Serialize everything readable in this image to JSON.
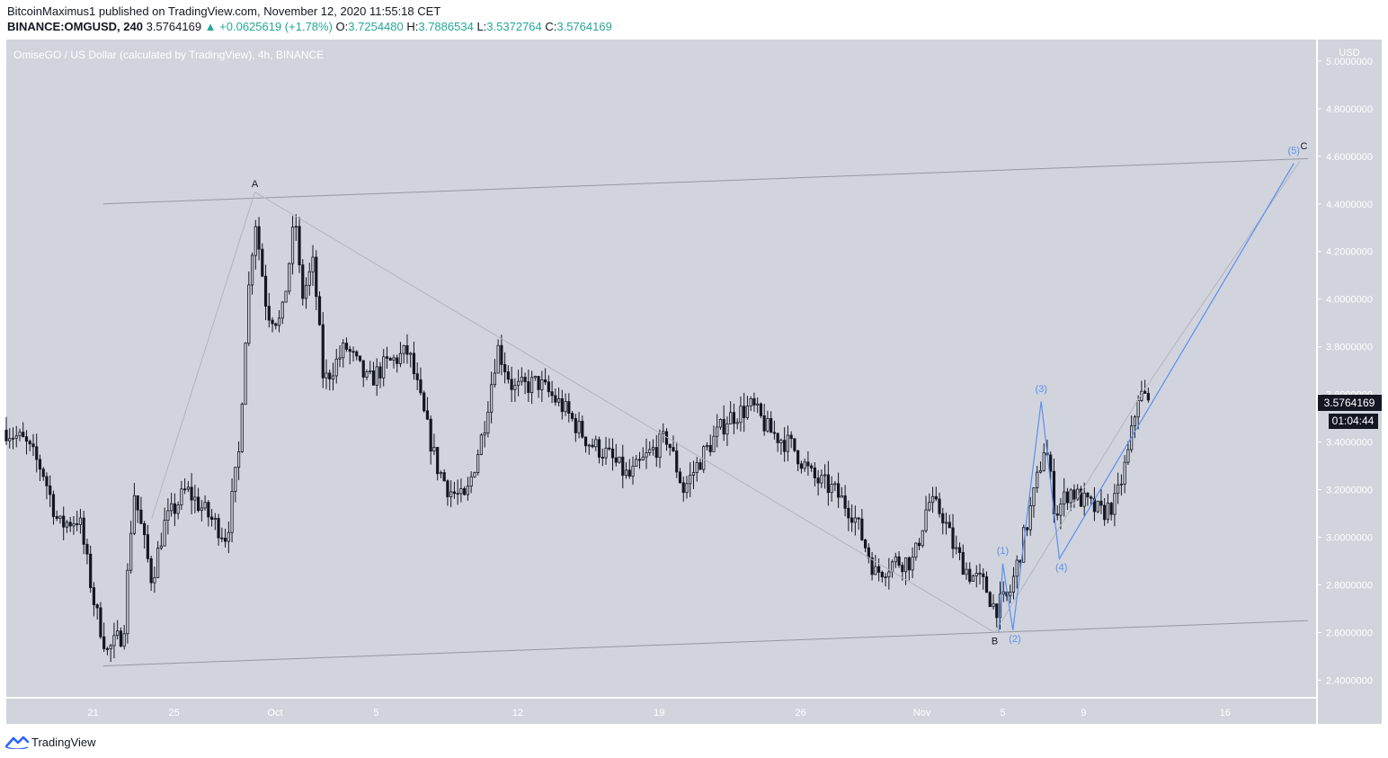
{
  "header": {
    "publisher": "BitcoinMaximus1",
    "published_text": "published on TradingView.com, November 12, 2020 11:55:18 CET",
    "symbol": "BINANCE:OMGUSD, 240",
    "last": "3.5764169",
    "change": "▲ +0.0625619 (+1.78%)",
    "o_label": "O:",
    "o_value": "3.7254480",
    "h_label": "H:",
    "h_value": "3.7886534",
    "l_label": "L:",
    "l_value": "3.5372764",
    "c_label": "C:",
    "c_value": "3.5764169"
  },
  "footer": {
    "brand": "TradingView",
    "logo_icon": "tradingview-logo-icon"
  },
  "colors": {
    "plot_bg": "#d1d4dc",
    "axis_bg": "#d1d4dc",
    "candle": "#131722",
    "channel_line": "#9598a1",
    "wave_line": "#b2b5be",
    "blue_wave": "#5b8ff0",
    "price_label_bg": "#131722",
    "up": "#26a69a"
  },
  "chart_data": {
    "type": "candlestick",
    "title": "OmiseGO / US Dollar (calculated by TradingView), 4h, BINANCE",
    "currency_label": "USD",
    "ylim": [
      2.33,
      5.09
    ],
    "y_ticks": [
      "5.0000000",
      "4.8000000",
      "4.6000000",
      "4.4000000",
      "4.2000000",
      "4.0000000",
      "3.8000000",
      "3.6000000",
      "3.4000000",
      "3.2000000",
      "3.0000000",
      "2.8000000",
      "2.6000000",
      "2.4000000"
    ],
    "x_ticks": [
      {
        "label": "21",
        "day": 21
      },
      {
        "label": "25",
        "day": 25
      },
      {
        "label": "Oct",
        "day": 30
      },
      {
        "label": "5",
        "day": 35
      },
      {
        "label": "12",
        "day": 42
      },
      {
        "label": "19",
        "day": 49
      },
      {
        "label": "26",
        "day": 56
      },
      {
        "label": "Nov",
        "day": 62
      },
      {
        "label": "5",
        "day": 66
      },
      {
        "label": "9",
        "day": 70
      },
      {
        "label": "16",
        "day": 77
      }
    ],
    "xlim_day": [
      16.7,
      81.5
    ],
    "last_price": "3.5764169",
    "countdown": "01:04:44",
    "keypoints": [
      {
        "day": 16.7,
        "price": 3.45
      },
      {
        "day": 17.6,
        "price": 3.4
      },
      {
        "day": 18.5,
        "price": 3.28
      },
      {
        "day": 19.3,
        "price": 3.05
      },
      {
        "day": 20.3,
        "price": 3.08
      },
      {
        "day": 21.1,
        "price": 2.7
      },
      {
        "day": 21.7,
        "price": 2.52
      },
      {
        "day": 22.5,
        "price": 2.6
      },
      {
        "day": 23.0,
        "price": 3.2
      },
      {
        "day": 23.9,
        "price": 2.82
      },
      {
        "day": 24.5,
        "price": 3.05
      },
      {
        "day": 25.6,
        "price": 3.2
      },
      {
        "day": 26.6,
        "price": 3.1
      },
      {
        "day": 27.6,
        "price": 3.0
      },
      {
        "day": 28.2,
        "price": 3.35
      },
      {
        "day": 28.6,
        "price": 3.95
      },
      {
        "day": 29.0,
        "price": 4.35
      },
      {
        "day": 29.6,
        "price": 3.95
      },
      {
        "day": 30.3,
        "price": 3.9
      },
      {
        "day": 31.0,
        "price": 4.35
      },
      {
        "day": 31.3,
        "price": 4.0
      },
      {
        "day": 31.9,
        "price": 4.15
      },
      {
        "day": 32.4,
        "price": 3.65
      },
      {
        "day": 33.5,
        "price": 3.8
      },
      {
        "day": 34.6,
        "price": 3.65
      },
      {
        "day": 35.4,
        "price": 3.72
      },
      {
        "day": 36.6,
        "price": 3.78
      },
      {
        "day": 37.4,
        "price": 3.5
      },
      {
        "day": 38.0,
        "price": 3.3
      },
      {
        "day": 38.6,
        "price": 3.2
      },
      {
        "day": 39.4,
        "price": 3.15
      },
      {
        "day": 40.3,
        "price": 3.45
      },
      {
        "day": 41.0,
        "price": 3.8
      },
      {
        "day": 41.8,
        "price": 3.62
      },
      {
        "day": 43.0,
        "price": 3.65
      },
      {
        "day": 44.2,
        "price": 3.55
      },
      {
        "day": 45.5,
        "price": 3.4
      },
      {
        "day": 46.4,
        "price": 3.35
      },
      {
        "day": 47.5,
        "price": 3.25
      },
      {
        "day": 48.5,
        "price": 3.35
      },
      {
        "day": 49.4,
        "price": 3.42
      },
      {
        "day": 50.2,
        "price": 3.2
      },
      {
        "day": 51.2,
        "price": 3.35
      },
      {
        "day": 52.4,
        "price": 3.5
      },
      {
        "day": 53.6,
        "price": 3.55
      },
      {
        "day": 54.4,
        "price": 3.45
      },
      {
        "day": 55.6,
        "price": 3.38
      },
      {
        "day": 56.6,
        "price": 3.25
      },
      {
        "day": 57.6,
        "price": 3.2
      },
      {
        "day": 58.6,
        "price": 3.1
      },
      {
        "day": 59.7,
        "price": 2.85
      },
      {
        "day": 60.7,
        "price": 2.9
      },
      {
        "day": 61.6,
        "price": 2.9
      },
      {
        "day": 62.3,
        "price": 3.15
      },
      {
        "day": 63.0,
        "price": 3.1
      },
      {
        "day": 63.6,
        "price": 2.95
      },
      {
        "day": 64.3,
        "price": 2.85
      },
      {
        "day": 65.1,
        "price": 2.8
      },
      {
        "day": 65.6,
        "price": 2.7
      },
      {
        "day": 66.3,
        "price": 2.75
      },
      {
        "day": 66.9,
        "price": 2.95
      },
      {
        "day": 67.6,
        "price": 3.2
      },
      {
        "day": 68.1,
        "price": 3.4
      },
      {
        "day": 68.6,
        "price": 3.1
      },
      {
        "day": 69.3,
        "price": 3.2
      },
      {
        "day": 70.0,
        "price": 3.15
      },
      {
        "day": 70.9,
        "price": 3.1
      },
      {
        "day": 71.6,
        "price": 3.15
      },
      {
        "day": 72.2,
        "price": 3.35
      },
      {
        "day": 72.7,
        "price": 3.6
      },
      {
        "day": 73.3,
        "price": 3.58
      }
    ],
    "channel_lines": [
      {
        "name": "upper-channel-line",
        "from": {
          "day": 21.5,
          "price": 4.4
        },
        "to": {
          "day": 81.1,
          "price": 4.59
        }
      },
      {
        "name": "lower-channel-line",
        "from": {
          "day": 21.5,
          "price": 2.46
        },
        "to": {
          "day": 81.1,
          "price": 2.65
        }
      }
    ],
    "wave_lines": [
      {
        "name": "wave-a-line",
        "points": [
          {
            "day": 23.9,
            "price": 3.08
          },
          {
            "day": 29.0,
            "price": 4.45
          }
        ]
      },
      {
        "name": "wave-b-line",
        "points": [
          {
            "day": 29.0,
            "price": 4.45
          },
          {
            "day": 65.6,
            "price": 2.6
          }
        ]
      },
      {
        "name": "wave-c-line",
        "points": [
          {
            "day": 65.6,
            "price": 2.6
          },
          {
            "day": 73.0,
            "price": 3.62
          },
          {
            "day": 80.7,
            "price": 4.58
          }
        ]
      }
    ],
    "blue_wave_points": [
      {
        "day": 65.8,
        "price": 2.6
      },
      {
        "day": 66.0,
        "price": 2.89
      },
      {
        "day": 66.5,
        "price": 2.61
      },
      {
        "day": 67.9,
        "price": 3.57
      },
      {
        "day": 68.8,
        "price": 2.91
      },
      {
        "day": 80.4,
        "price": 4.57
      }
    ],
    "annotations": [
      {
        "label": "A",
        "day": 29.0,
        "price": 4.47,
        "style": "wave"
      },
      {
        "label": "B",
        "day": 65.6,
        "price": 2.55,
        "style": "wave"
      },
      {
        "label": "C",
        "day": 80.9,
        "price": 4.63,
        "style": "wave"
      },
      {
        "label": "(1)",
        "day": 66.0,
        "price": 2.93,
        "style": "blue"
      },
      {
        "label": "(2)",
        "day": 66.6,
        "price": 2.56,
        "style": "blue"
      },
      {
        "label": "(3)",
        "day": 67.9,
        "price": 3.61,
        "style": "blue"
      },
      {
        "label": "(4)",
        "day": 68.9,
        "price": 2.86,
        "style": "blue"
      },
      {
        "label": "(5)",
        "day": 80.4,
        "price": 4.61,
        "style": "blue"
      }
    ]
  }
}
